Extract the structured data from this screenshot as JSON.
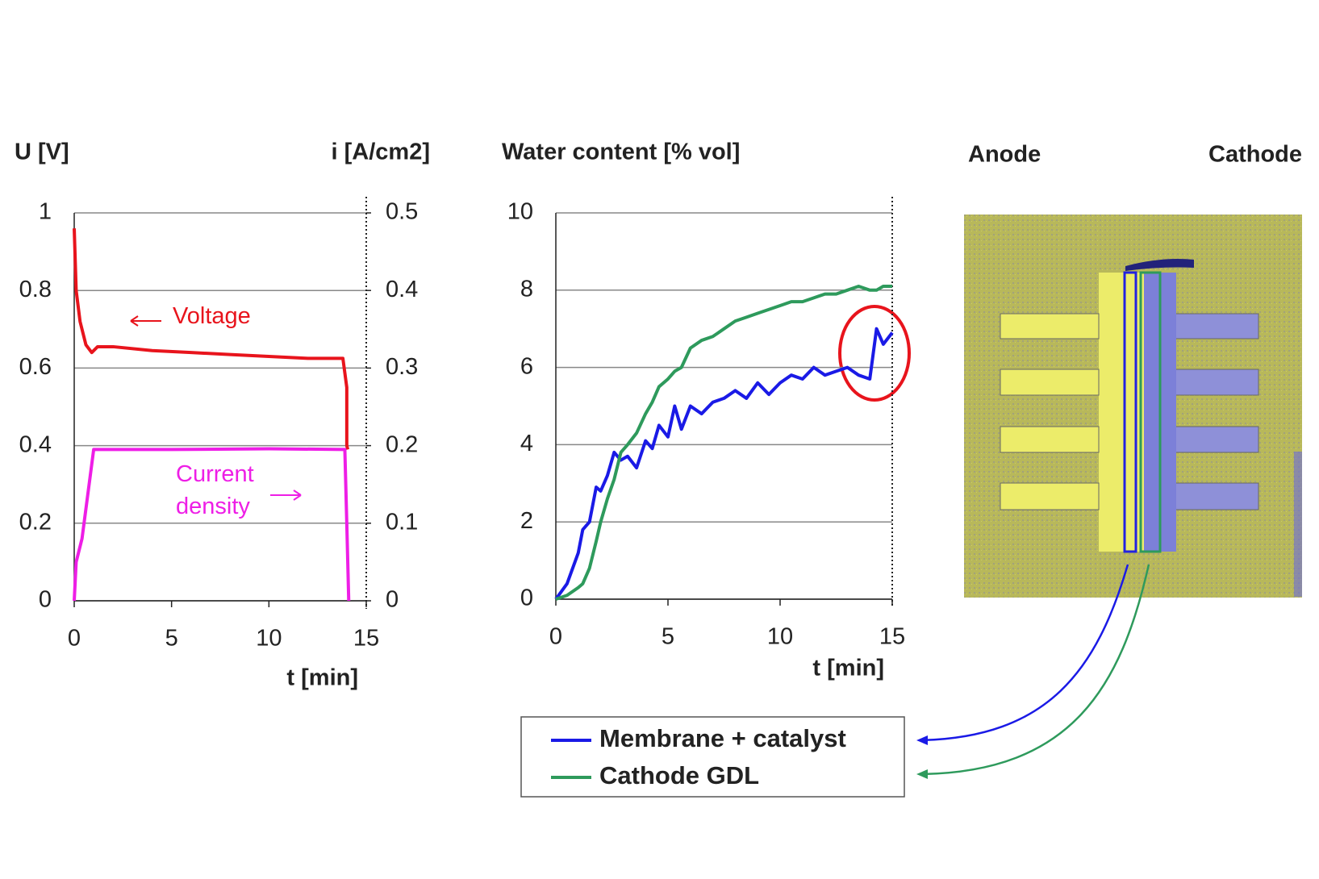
{
  "chart_data": [
    {
      "type": "line",
      "ylabel": "U [V]",
      "y2label": "i [A/cm2]",
      "xlabel": "t [min]",
      "xlim": [
        0,
        15
      ],
      "xticks": [
        0,
        5,
        10,
        15
      ],
      "ylim": [
        0,
        1
      ],
      "yticks": [
        0,
        0.2,
        0.4,
        0.6,
        0.8,
        1
      ],
      "y2lim": [
        0,
        0.5
      ],
      "y2ticks": [
        0,
        0.1,
        0.2,
        0.3,
        0.4,
        0.5
      ],
      "grid": true,
      "series": [
        {
          "name": "Voltage",
          "color": "#e8141c",
          "x": [
            0,
            0.1,
            0.3,
            0.6,
            0.9,
            1.2,
            2,
            4,
            6,
            8,
            10,
            12,
            13.8,
            14,
            14,
            14.05
          ],
          "values": [
            0.96,
            0.8,
            0.72,
            0.66,
            0.64,
            0.655,
            0.655,
            0.645,
            0.64,
            0.635,
            0.63,
            0.625,
            0.625,
            0.55,
            0.4,
            0.39
          ]
        },
        {
          "name": "Current density",
          "color": "#ee1ee6",
          "axis": "y2",
          "x": [
            0,
            0.1,
            0.4,
            1,
            5,
            10,
            13.9,
            14,
            14.1
          ],
          "values": [
            0,
            0.05,
            0.08,
            0.195,
            0.195,
            0.196,
            0.195,
            0.1,
            0
          ]
        }
      ]
    },
    {
      "type": "line",
      "ylabel": "Water content  [% vol]",
      "xlabel": "t [min]",
      "xlim": [
        0,
        15
      ],
      "xticks": [
        0,
        5,
        10,
        15
      ],
      "ylim": [
        0,
        10
      ],
      "yticks": [
        0,
        2,
        4,
        6,
        8,
        10
      ],
      "grid": true,
      "legend": "bottom",
      "x": [
        0,
        0.5,
        1,
        1.2,
        1.5,
        1.8,
        2,
        2.3,
        2.6,
        2.9,
        3.2,
        3.6,
        4,
        4.3,
        4.6,
        5,
        5.3,
        5.6,
        6,
        6.5,
        7,
        7.5,
        8,
        8.5,
        9,
        9.5,
        10,
        10.5,
        11,
        11.5,
        12,
        12.5,
        13,
        13.5,
        14,
        14.3,
        14.6,
        15
      ],
      "series": [
        {
          "name": "Membrane + catalyst",
          "color": "#1a1ae6",
          "values": [
            0,
            0.4,
            1.2,
            1.8,
            2.0,
            2.9,
            2.8,
            3.2,
            3.8,
            3.6,
            3.7,
            3.4,
            4.1,
            3.9,
            4.5,
            4.2,
            5.0,
            4.4,
            5.0,
            4.8,
            5.1,
            5.2,
            5.4,
            5.2,
            5.6,
            5.3,
            5.6,
            5.8,
            5.7,
            6.0,
            5.8,
            5.9,
            6.0,
            5.8,
            5.7,
            7.0,
            6.6,
            6.9
          ]
        },
        {
          "name": "Cathode GDL",
          "color": "#2e9a5c",
          "values": [
            0,
            0.1,
            0.3,
            0.4,
            0.8,
            1.5,
            2.0,
            2.6,
            3.1,
            3.8,
            4.0,
            4.3,
            4.8,
            5.1,
            5.5,
            5.7,
            5.9,
            6.0,
            6.5,
            6.7,
            6.8,
            7.0,
            7.2,
            7.3,
            7.4,
            7.5,
            7.6,
            7.7,
            7.7,
            7.8,
            7.9,
            7.9,
            8.0,
            8.1,
            8.0,
            8.0,
            8.1,
            8.1
          ]
        }
      ]
    }
  ],
  "figure": {
    "anode_label": "Anode",
    "cathode_label": "Cathode"
  }
}
